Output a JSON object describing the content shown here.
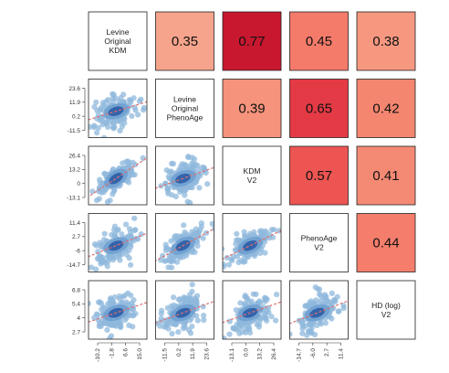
{
  "chart_data": {
    "type": "scatter",
    "variables": [
      {
        "label_lines": [
          "Levine",
          "Original",
          "KDM"
        ]
      },
      {
        "label_lines": [
          "Levine",
          "Original",
          "PhenoAge"
        ]
      },
      {
        "label_lines": [
          "KDM",
          "V2"
        ]
      },
      {
        "label_lines": [
          "PhenoAge",
          "V2"
        ]
      },
      {
        "label_lines": [
          "HD (log)",
          "V2"
        ]
      }
    ],
    "correlations": [
      {
        "row": 0,
        "col": 1,
        "value": "0.35",
        "color": "#f6a48c"
      },
      {
        "row": 0,
        "col": 2,
        "value": "0.77",
        "color": "#c8182f"
      },
      {
        "row": 0,
        "col": 3,
        "value": "0.45",
        "color": "#f47b6a"
      },
      {
        "row": 0,
        "col": 4,
        "value": "0.38",
        "color": "#f69880"
      },
      {
        "row": 1,
        "col": 2,
        "value": "0.39",
        "color": "#f5937c"
      },
      {
        "row": 1,
        "col": 3,
        "value": "0.65",
        "color": "#e43a45"
      },
      {
        "row": 1,
        "col": 4,
        "value": "0.42",
        "color": "#f48670"
      },
      {
        "row": 2,
        "col": 3,
        "value": "0.57",
        "color": "#ed5552"
      },
      {
        "row": 2,
        "col": 4,
        "value": "0.41",
        "color": "#f58a74"
      },
      {
        "row": 3,
        "col": 4,
        "value": "0.44",
        "color": "#f47e6b"
      }
    ],
    "y_ticks": [
      {
        "row": 1,
        "labels": [
          "23.6",
          "11.9",
          "0.2",
          "-11.5"
        ]
      },
      {
        "row": 2,
        "labels": [
          "26.4",
          "13.2",
          "0",
          "-13.1"
        ]
      },
      {
        "row": 3,
        "labels": [
          "11.4",
          "2.7",
          "-6",
          "-14.7"
        ]
      },
      {
        "row": 4,
        "labels": [
          "6.8",
          "5.4",
          "4",
          "2.7"
        ]
      }
    ],
    "x_ticks": [
      {
        "col": 0,
        "labels": [
          "-10.2",
          "-1.8",
          "6.6",
          "15.0"
        ]
      },
      {
        "col": 1,
        "labels": [
          "-11.5",
          "0.2",
          "11.9",
          "23.6"
        ]
      },
      {
        "col": 2,
        "labels": [
          "-13.1",
          "0.0",
          "13.2",
          "26.4"
        ]
      },
      {
        "col": 3,
        "labels": [
          "-14.7",
          "-6.0",
          "2.7",
          "11.4"
        ]
      }
    ],
    "scatter_point_color": "#8fb8dc",
    "density_core_color": "#1f4e9c",
    "fit_line_color": "#e07070"
  }
}
